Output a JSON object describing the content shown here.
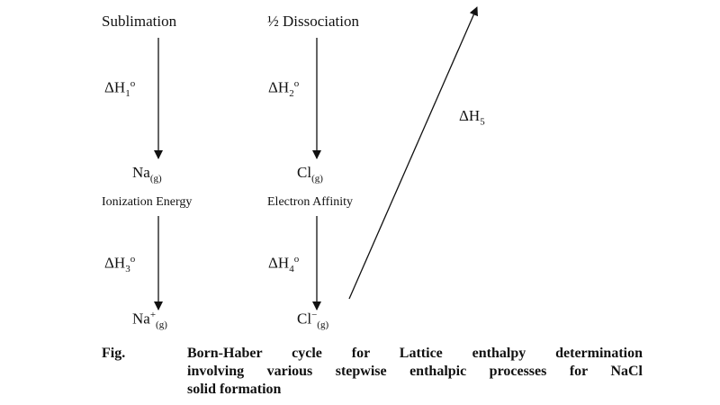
{
  "labels": {
    "sublimation": "Sublimation",
    "dissociation": "½ Dissociation",
    "dh1": {
      "main": "ΔH",
      "sub": "1",
      "sup": "o"
    },
    "dh2": {
      "main": "ΔH",
      "sub": "2",
      "sup": "o"
    },
    "na_g": {
      "main": "Na",
      "sub": "(g)"
    },
    "cl_g": {
      "main": "Cl",
      "sub": "(g)"
    },
    "ionization": "Ionization Energy",
    "affinity": "Electron Affinity",
    "dh3": {
      "main": "ΔH",
      "sub": "3",
      "sup": "o"
    },
    "dh4": {
      "main": "ΔH",
      "sub": "4",
      "sup": "o"
    },
    "na_plus": {
      "main": "Na",
      "sup": "+",
      "sub": "(g)"
    },
    "cl_minus": {
      "main": "Cl",
      "sup": "−",
      "sub": "(g)"
    },
    "dh5": {
      "main": "ΔH",
      "sub": "5"
    }
  },
  "caption": {
    "label": "Fig.",
    "lines": [
      "Born-Haber cycle for Lattice enthalpy determination",
      "involving various stepwise enthalpic processes for NaCl",
      "solid formation"
    ]
  }
}
